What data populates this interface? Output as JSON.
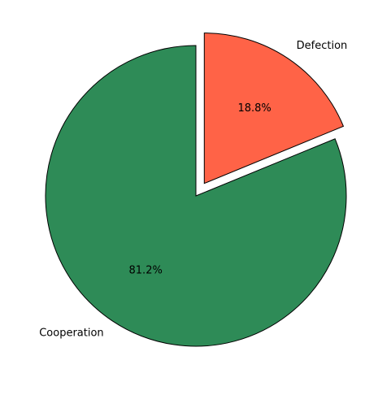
{
  "chart_data": {
    "type": "pie",
    "title": "",
    "slices": [
      {
        "label": "Cooperation",
        "value": 81.2,
        "pct_label": "81.2%",
        "color": "#2e8b57",
        "explode": false
      },
      {
        "label": "Defection",
        "value": 18.8,
        "pct_label": "18.8%",
        "color": "#ff6347",
        "explode": true
      }
    ],
    "start_angle_deg": 90,
    "direction": "counterclockwise",
    "edge_color": "#000000"
  }
}
